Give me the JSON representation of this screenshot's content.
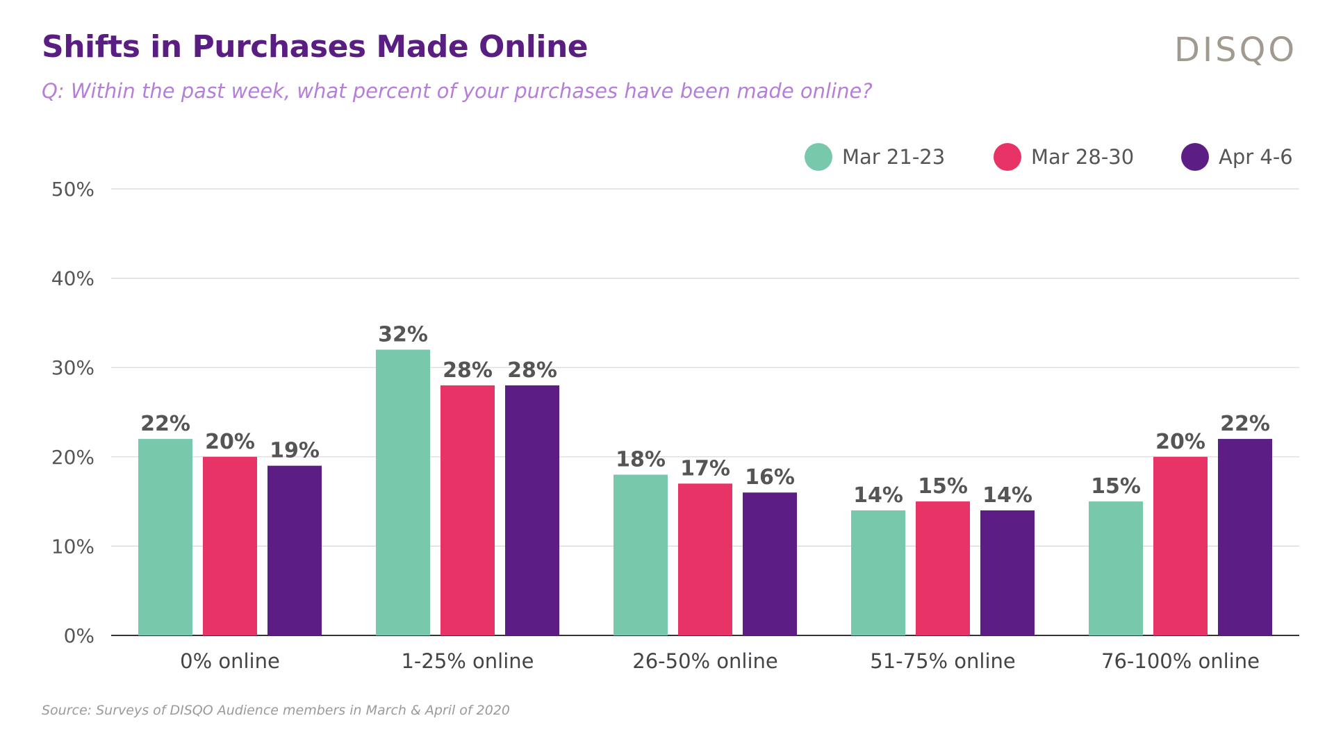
{
  "header": {
    "title": "Shifts in Purchases Made Online",
    "subtitle": "Q: Within the past week, what percent of your purchases have been made online?",
    "logo": "DISQO"
  },
  "footer": {
    "source": "Source: Surveys of DISQO Audience members in March & April of 2020"
  },
  "chart_data": {
    "type": "bar",
    "title": "Shifts in Purchases Made Online",
    "xlabel": "",
    "ylabel": "",
    "ylim": [
      0,
      50
    ],
    "yticks": [
      0,
      10,
      20,
      30,
      40,
      50
    ],
    "ytick_labels": [
      "0%",
      "10%",
      "20%",
      "30%",
      "40%",
      "50%"
    ],
    "grid": true,
    "legend_position": "top-right",
    "categories": [
      "0% online",
      "1-25% online",
      "26-50% online",
      "51-75% online",
      "76-100% online"
    ],
    "series": [
      {
        "name": "Mar 21-23",
        "color": "#78c9ab",
        "values": [
          22,
          32,
          18,
          14,
          15
        ],
        "labels": [
          "22%",
          "32%",
          "18%",
          "14%",
          "15%"
        ]
      },
      {
        "name": "Mar 28-30",
        "color": "#e83367",
        "values": [
          20,
          28,
          17,
          15,
          20
        ],
        "labels": [
          "20%",
          "28%",
          "17%",
          "15%",
          "20%"
        ]
      },
      {
        "name": "Apr 4-6",
        "color": "#5c1e84",
        "values": [
          19,
          28,
          16,
          14,
          22
        ],
        "labels": [
          "19%",
          "28%",
          "16%",
          "14%",
          "22%"
        ]
      }
    ]
  }
}
